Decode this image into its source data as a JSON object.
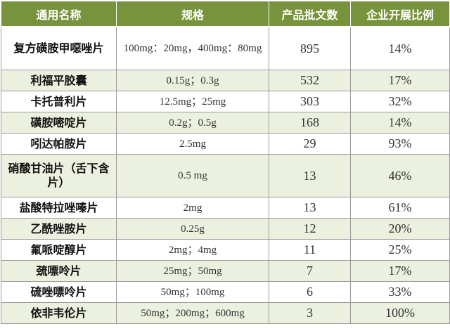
{
  "header_color": "#77933c",
  "shade_color": "#ebf1de",
  "headers": [
    "通用名称",
    "规格",
    "产品批文数",
    "企业开展比例"
  ],
  "rows": [
    {
      "name": "复方磺胺甲噁唑片",
      "spec": "100mg：20mg，400mg：80mg",
      "count": "895",
      "ratio": "14%"
    },
    {
      "name": "利福平胶囊",
      "spec": "0.15g；0.3g",
      "count": "532",
      "ratio": "17%"
    },
    {
      "name": "卡托普利片",
      "spec": "12.5mg；25mg",
      "count": "303",
      "ratio": "32%"
    },
    {
      "name": "磺胺嘧啶片",
      "spec": "0.2g；0.5g",
      "count": "168",
      "ratio": "14%"
    },
    {
      "name": "吲达帕胺片",
      "spec": "2.5mg",
      "count": "29",
      "ratio": "93%"
    },
    {
      "name": "硝酸甘油片（舌下含片）",
      "spec": "0.5 mg",
      "count": "13",
      "ratio": "46%"
    },
    {
      "name": "盐酸特拉唑嗪片",
      "spec": "2mg",
      "count": "13",
      "ratio": "61%"
    },
    {
      "name": "乙酰唑胺片",
      "spec": "0.25g",
      "count": "12",
      "ratio": "20%"
    },
    {
      "name": "氟哌啶醇片",
      "spec": "2mg；4mg",
      "count": "11",
      "ratio": "25%"
    },
    {
      "name": "巯嘌呤片",
      "spec": "25mg；50mg",
      "count": "7",
      "ratio": "17%"
    },
    {
      "name": "硫唑嘌呤片",
      "spec": "50mg；100mg",
      "count": "6",
      "ratio": "33%"
    },
    {
      "name": "依非韦伦片",
      "spec": "50mg；200mg；600mg",
      "count": "3",
      "ratio": "100%"
    }
  ]
}
